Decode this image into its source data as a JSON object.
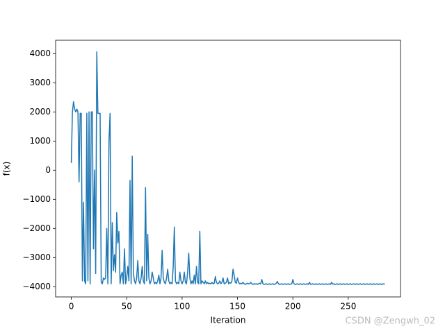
{
  "chart_data": {
    "type": "line",
    "x_label": "Iteration",
    "y_label": "f(x)",
    "watermark": "CSDN @Zengwh_02",
    "xlim": [
      -14.15,
      297.15
    ],
    "ylim": [
      -4350,
      4460
    ],
    "xticks": [
      0,
      50,
      100,
      150,
      200,
      250
    ],
    "yticks": [
      {
        "value": -4000,
        "label": "−4000"
      },
      {
        "value": -3000,
        "label": "−3000"
      },
      {
        "value": -2000,
        "label": "−2000"
      },
      {
        "value": -1000,
        "label": "−1000"
      },
      0,
      1000,
      2000,
      3000,
      4000
    ],
    "x": [
      0,
      1,
      2,
      3,
      4,
      5,
      6,
      7,
      8,
      9,
      10,
      11,
      12,
      13,
      14,
      15,
      16,
      17,
      18,
      19,
      20,
      21,
      22,
      23,
      24,
      25,
      26,
      27,
      28,
      29,
      30,
      31,
      32,
      33,
      34,
      35,
      36,
      37,
      38,
      39,
      40,
      41,
      42,
      43,
      44,
      45,
      46,
      47,
      48,
      49,
      50,
      51,
      52,
      53,
      54,
      55,
      56,
      57,
      58,
      59,
      60,
      61,
      62,
      63,
      64,
      65,
      66,
      67,
      68,
      69,
      70,
      71,
      72,
      73,
      74,
      75,
      76,
      77,
      78,
      79,
      80,
      81,
      82,
      83,
      84,
      85,
      86,
      87,
      88,
      89,
      90,
      91,
      92,
      93,
      94,
      95,
      96,
      97,
      98,
      99,
      100,
      101,
      102,
      103,
      104,
      105,
      106,
      107,
      108,
      109,
      110,
      111,
      112,
      113,
      114,
      115,
      116,
      117,
      118,
      119,
      120,
      121,
      122,
      123,
      124,
      125,
      126,
      127,
      128,
      129,
      130,
      131,
      132,
      133,
      134,
      135,
      136,
      137,
      138,
      139,
      140,
      141,
      142,
      143,
      144,
      145,
      146,
      147,
      148,
      149,
      150,
      151,
      152,
      153,
      154,
      155,
      156,
      157,
      158,
      159,
      160,
      161,
      162,
      163,
      164,
      165,
      166,
      167,
      168,
      169,
      170,
      171,
      172,
      173,
      174,
      175,
      176,
      177,
      178,
      179,
      180,
      181,
      182,
      183,
      184,
      185,
      186,
      187,
      188,
      189,
      190,
      191,
      192,
      193,
      194,
      195,
      196,
      197,
      198,
      199,
      200,
      201,
      202,
      203,
      204,
      205,
      206,
      207,
      208,
      209,
      210,
      211,
      212,
      213,
      214,
      215,
      216,
      217,
      218,
      219,
      220,
      221,
      222,
      223,
      224,
      225,
      226,
      227,
      228,
      229,
      230,
      231,
      232,
      233,
      234,
      235,
      236,
      237,
      238,
      239,
      240,
      241,
      242,
      243,
      244,
      245,
      246,
      247,
      248,
      249,
      250,
      251,
      252,
      253,
      254,
      255,
      256,
      257,
      258,
      259,
      260,
      261,
      262,
      263,
      264,
      265,
      266,
      267,
      268,
      269,
      270,
      271,
      272,
      273,
      274,
      275,
      276,
      277,
      278,
      279,
      280,
      281,
      282,
      283
    ],
    "series": [
      {
        "color": "#1f77b4",
        "values": [
          250,
          2000,
          2350,
          2100,
          2000,
          2100,
          2000,
          -400,
          1950,
          1950,
          -3800,
          -1100,
          -3800,
          -3900,
          1950,
          -3800,
          2000,
          -3900,
          2000,
          2000,
          -2700,
          0,
          -3550,
          4060,
          1950,
          1950,
          1950,
          -3850,
          -3900,
          -3700,
          -3750,
          -3700,
          -2000,
          -3900,
          1000,
          1950,
          -3900,
          -1800,
          -3450,
          -2900,
          -3500,
          -1450,
          -2500,
          -2100,
          -3900,
          -3600,
          -3500,
          -3900,
          -2700,
          -3900,
          -3700,
          -3300,
          -3800,
          -350,
          -3900,
          480,
          -3500,
          -3800,
          -3900,
          -3700,
          -3100,
          -3800,
          -3900,
          -3700,
          -3300,
          -3800,
          -3900,
          -600,
          -3800,
          -2200,
          -3700,
          -3900,
          -3800,
          -3500,
          -3700,
          -3900,
          -3850,
          -3900,
          -3800,
          -3600,
          -3900,
          -3700,
          -2750,
          -3700,
          -3850,
          -3900,
          -3700,
          -3400,
          -3800,
          -3900,
          -3850,
          -3900,
          -3300,
          -1950,
          -3800,
          -3900,
          -3850,
          -3900,
          -3500,
          -3800,
          -3900,
          -3800,
          -3500,
          -3850,
          -3900,
          -3500,
          -2850,
          -3700,
          -3900,
          -3800,
          -3900,
          -3600,
          -3900,
          -3300,
          -3850,
          -3900,
          -2100,
          -3900,
          -3800,
          -3850,
          -3900,
          -3800,
          -3900,
          -3850,
          -3900,
          -3880,
          -3900,
          -3850,
          -3900,
          -3880,
          -3650,
          -3850,
          -3900,
          -3880,
          -3800,
          -3900,
          -3850,
          -3700,
          -3900,
          -3880,
          -3850,
          -3700,
          -3900,
          -3850,
          -3880,
          -3800,
          -3400,
          -3600,
          -3850,
          -3880,
          -3700,
          -3850,
          -3900,
          -3880,
          -3900,
          -3850,
          -3900,
          -3920,
          -3900,
          -3880,
          -3900,
          -3900,
          -3850,
          -3900,
          -3920,
          -3900,
          -3910,
          -3900,
          -3920,
          -3900,
          -3880,
          -3900,
          -3750,
          -3900,
          -3920,
          -3910,
          -3900,
          -3920,
          -3910,
          -3900,
          -3920,
          -3910,
          -3900,
          -3920,
          -3910,
          -3880,
          -3820,
          -3900,
          -3920,
          -3910,
          -3900,
          -3920,
          -3910,
          -3900,
          -3920,
          -3910,
          -3900,
          -3920,
          -3910,
          -3900,
          -3750,
          -3900,
          -3920,
          -3910,
          -3900,
          -3920,
          -3910,
          -3900,
          -3920,
          -3910,
          -3900,
          -3920,
          -3910,
          -3900,
          -3920,
          -3850,
          -3920,
          -3910,
          -3900,
          -3920,
          -3910,
          -3900,
          -3920,
          -3910,
          -3900,
          -3920,
          -3910,
          -3900,
          -3920,
          -3910,
          -3900,
          -3920,
          -3910,
          -3900,
          -3920,
          -3850,
          -3910,
          -3900,
          -3920,
          -3910,
          -3900,
          -3920,
          -3910,
          -3900,
          -3920,
          -3910,
          -3900,
          -3920,
          -3910,
          -3900,
          -3920,
          -3910,
          -3900,
          -3920,
          -3910,
          -3900,
          -3920,
          -3910,
          -3900,
          -3920,
          -3910,
          -3900,
          -3920,
          -3910,
          -3900,
          -3920,
          -3910,
          -3900,
          -3920,
          -3910,
          -3900,
          -3920,
          -3910,
          -3900,
          -3920,
          -3910,
          -3900,
          -3920,
          -3910,
          -3900,
          -3920,
          -3910,
          -3900,
          -3920
        ]
      }
    ]
  }
}
